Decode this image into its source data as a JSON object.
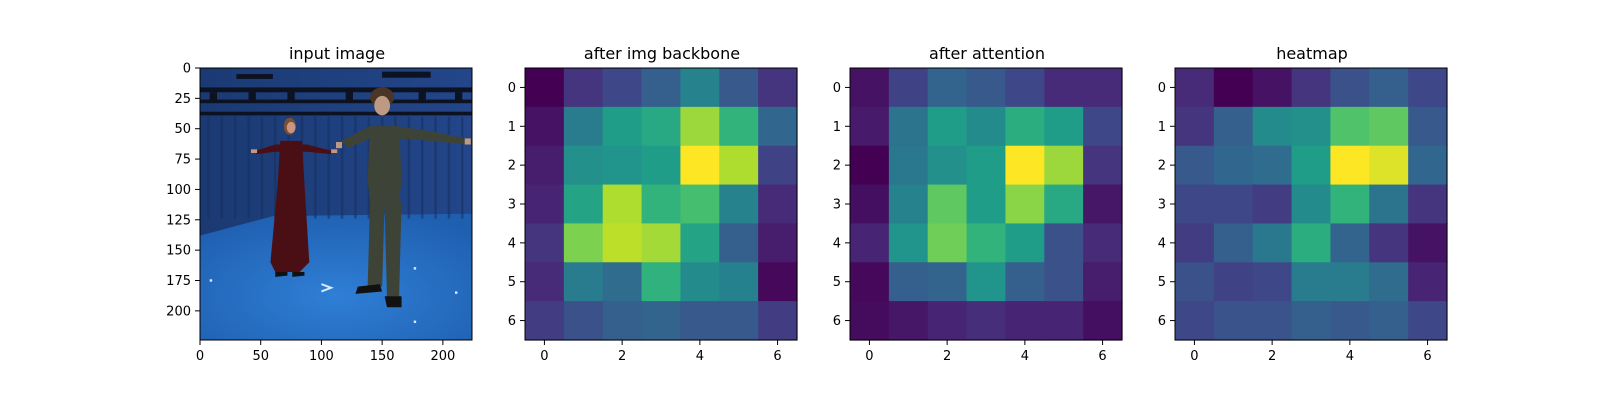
{
  "figure": {
    "colormap": "viridis",
    "colormap_stops": [
      "#440154",
      "#482878",
      "#3e4989",
      "#31688e",
      "#26828e",
      "#1f9e89",
      "#35b779",
      "#6ece58",
      "#b5de2b",
      "#fde725"
    ],
    "background": "#ffffff"
  },
  "chart_data": [
    {
      "type": "image",
      "title": "input image",
      "xlim": [
        0,
        224
      ],
      "ylim": [
        224,
        0
      ],
      "x_ticks": [
        0,
        50,
        100,
        150,
        200
      ],
      "y_ticks": [
        0,
        25,
        50,
        75,
        100,
        125,
        150,
        175,
        200
      ],
      "scene_colors": {
        "backdrop": "#1b3a73",
        "floor": "#2f7fd6",
        "rig": "#0c1220",
        "woman_dress": "#4a0f14",
        "woman_skin": "#c99680",
        "woman_hair": "#7a5035",
        "man_clothes": "#3d4437",
        "man_skin": "#bf9a82",
        "man_hair": "#4a3526",
        "shoes": "#111111",
        "floor_marks": "#d8ecff"
      }
    },
    {
      "type": "heatmap",
      "title": "after img backbone",
      "xlim": [
        -0.5,
        6.5
      ],
      "ylim": [
        6.5,
        -0.5
      ],
      "x_ticks": [
        0,
        2,
        4,
        6
      ],
      "y_ticks": [
        0,
        1,
        2,
        3,
        4,
        5,
        6
      ],
      "matrix": [
        [
          0.0,
          0.15,
          0.22,
          0.3,
          0.45,
          0.28,
          0.15
        ],
        [
          0.05,
          0.42,
          0.55,
          0.6,
          0.85,
          0.65,
          0.33
        ],
        [
          0.08,
          0.5,
          0.52,
          0.55,
          1.0,
          0.88,
          0.2
        ],
        [
          0.1,
          0.58,
          0.88,
          0.65,
          0.7,
          0.45,
          0.12
        ],
        [
          0.15,
          0.8,
          0.9,
          0.86,
          0.58,
          0.3,
          0.08
        ],
        [
          0.12,
          0.42,
          0.35,
          0.64,
          0.48,
          0.44,
          0.02
        ],
        [
          0.18,
          0.25,
          0.3,
          0.32,
          0.28,
          0.28,
          0.18
        ]
      ]
    },
    {
      "type": "heatmap",
      "title": "after attention",
      "xlim": [
        -0.5,
        6.5
      ],
      "ylim": [
        6.5,
        -0.5
      ],
      "x_ticks": [
        0,
        2,
        4,
        6
      ],
      "y_ticks": [
        0,
        1,
        2,
        3,
        4,
        5,
        6
      ],
      "matrix": [
        [
          0.05,
          0.2,
          0.32,
          0.28,
          0.22,
          0.12,
          0.12
        ],
        [
          0.07,
          0.38,
          0.55,
          0.48,
          0.62,
          0.55,
          0.22
        ],
        [
          0.0,
          0.4,
          0.5,
          0.55,
          1.0,
          0.85,
          0.15
        ],
        [
          0.04,
          0.45,
          0.75,
          0.55,
          0.82,
          0.6,
          0.06
        ],
        [
          0.1,
          0.52,
          0.78,
          0.65,
          0.55,
          0.25,
          0.12
        ],
        [
          0.02,
          0.3,
          0.32,
          0.52,
          0.3,
          0.25,
          0.08
        ],
        [
          0.03,
          0.06,
          0.1,
          0.13,
          0.1,
          0.1,
          0.04
        ]
      ]
    },
    {
      "type": "heatmap",
      "title": "heatmap",
      "xlim": [
        -0.5,
        6.5
      ],
      "ylim": [
        6.5,
        -0.5
      ],
      "x_ticks": [
        0,
        2,
        4,
        6
      ],
      "y_ticks": [
        0,
        1,
        2,
        3,
        4,
        5,
        6
      ],
      "matrix": [
        [
          0.12,
          0.0,
          0.05,
          0.15,
          0.25,
          0.3,
          0.22
        ],
        [
          0.15,
          0.3,
          0.48,
          0.5,
          0.72,
          0.75,
          0.28
        ],
        [
          0.28,
          0.33,
          0.35,
          0.55,
          1.0,
          0.95,
          0.33
        ],
        [
          0.22,
          0.22,
          0.18,
          0.48,
          0.65,
          0.38,
          0.15
        ],
        [
          0.18,
          0.3,
          0.4,
          0.62,
          0.32,
          0.15,
          0.05
        ],
        [
          0.25,
          0.2,
          0.22,
          0.42,
          0.42,
          0.35,
          0.1
        ],
        [
          0.22,
          0.26,
          0.26,
          0.3,
          0.28,
          0.3,
          0.22
        ]
      ]
    }
  ]
}
